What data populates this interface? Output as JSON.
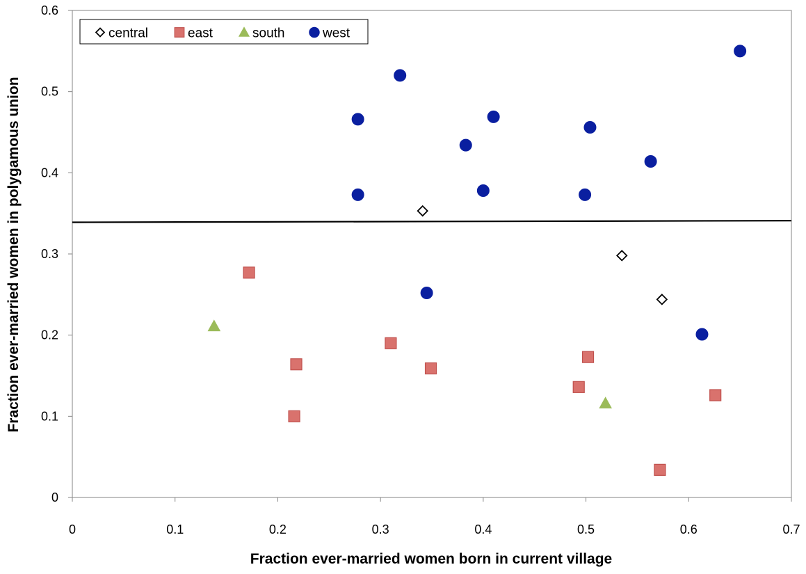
{
  "chart_data": {
    "type": "scatter",
    "title": "",
    "xlabel": "Fraction ever-married women born in current village",
    "ylabel": "Fraction ever-married women in polygamous union",
    "xlim": [
      0,
      0.7
    ],
    "ylim": [
      0,
      0.6
    ],
    "xticks": [
      0,
      0.1,
      0.2,
      0.3,
      0.4,
      0.5,
      0.6,
      0.7
    ],
    "xtick_labels": [
      "0",
      "0.1",
      "0.2",
      "0.3",
      "0.4",
      "0.5",
      "0.6",
      "0.7"
    ],
    "yticks": [
      0,
      0.1,
      0.2,
      0.3,
      0.4,
      0.5,
      0.6
    ],
    "ytick_labels": [
      "0",
      "0.1",
      "0.2",
      "0.3",
      "0.4",
      "0.5",
      "0.6"
    ],
    "grid": false,
    "legend_position": "top-left",
    "series": [
      {
        "name": "central",
        "marker": "diamond",
        "color": "#000000",
        "fill": "#ffffff",
        "points": [
          {
            "x": 0.341,
            "y": 0.353
          },
          {
            "x": 0.535,
            "y": 0.298
          },
          {
            "x": 0.574,
            "y": 0.244
          }
        ]
      },
      {
        "name": "east",
        "marker": "square",
        "color": "#c0504d",
        "fill": "#d9726d",
        "points": [
          {
            "x": 0.172,
            "y": 0.277
          },
          {
            "x": 0.218,
            "y": 0.164
          },
          {
            "x": 0.216,
            "y": 0.1
          },
          {
            "x": 0.31,
            "y": 0.19
          },
          {
            "x": 0.349,
            "y": 0.159
          },
          {
            "x": 0.493,
            "y": 0.136
          },
          {
            "x": 0.502,
            "y": 0.173
          },
          {
            "x": 0.572,
            "y": 0.034
          },
          {
            "x": 0.626,
            "y": 0.126
          }
        ]
      },
      {
        "name": "south",
        "marker": "triangle",
        "color": "#9bbb59",
        "fill": "#9bbb59",
        "points": [
          {
            "x": 0.138,
            "y": 0.211
          },
          {
            "x": 0.519,
            "y": 0.116
          }
        ]
      },
      {
        "name": "west",
        "marker": "circle",
        "color": "#0a1fa0",
        "fill": "#0a1fa0",
        "points": [
          {
            "x": 0.278,
            "y": 0.466
          },
          {
            "x": 0.278,
            "y": 0.373
          },
          {
            "x": 0.319,
            "y": 0.52
          },
          {
            "x": 0.345,
            "y": 0.252
          },
          {
            "x": 0.383,
            "y": 0.434
          },
          {
            "x": 0.4,
            "y": 0.378
          },
          {
            "x": 0.41,
            "y": 0.469
          },
          {
            "x": 0.499,
            "y": 0.373
          },
          {
            "x": 0.504,
            "y": 0.456
          },
          {
            "x": 0.563,
            "y": 0.414
          },
          {
            "x": 0.613,
            "y": 0.201
          },
          {
            "x": 0.65,
            "y": 0.55
          }
        ]
      }
    ],
    "reference_line": {
      "x": [
        0,
        0.7
      ],
      "y": [
        0.339,
        0.341
      ],
      "color": "#000000"
    }
  }
}
